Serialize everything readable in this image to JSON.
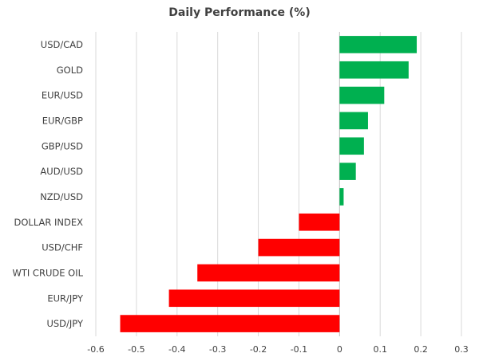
{
  "chart_data": {
    "type": "bar",
    "orientation": "horizontal",
    "title": "Daily Performance (%)",
    "xlabel": "",
    "ylabel": "",
    "xlim": [
      -0.6,
      0.3
    ],
    "xticks": [
      -0.6,
      -0.5,
      -0.4,
      -0.3,
      -0.2,
      -0.1,
      0,
      0.1,
      0.2,
      0.3
    ],
    "tick_labels": [
      "-0.6",
      "-0.5",
      "-0.4",
      "-0.3",
      "-0.2",
      "-0.1",
      "0",
      "0.1",
      "0.2",
      "0.3"
    ],
    "grid": "vertical",
    "legend": "none",
    "categories": [
      "USD/CAD",
      "GOLD",
      "EUR/USD",
      "EUR/GBP",
      "GBP/USD",
      "AUD/USD",
      "NZD/USD",
      "DOLLAR INDEX",
      "USD/CHF",
      "WTI CRUDE OIL",
      "EUR/JPY",
      "USD/JPY"
    ],
    "values": [
      0.19,
      0.17,
      0.11,
      0.07,
      0.06,
      0.04,
      0.01,
      -0.1,
      -0.2,
      -0.35,
      -0.42,
      -0.54
    ],
    "colors": {
      "positive": "#00b050",
      "negative": "#ff0000"
    }
  }
}
